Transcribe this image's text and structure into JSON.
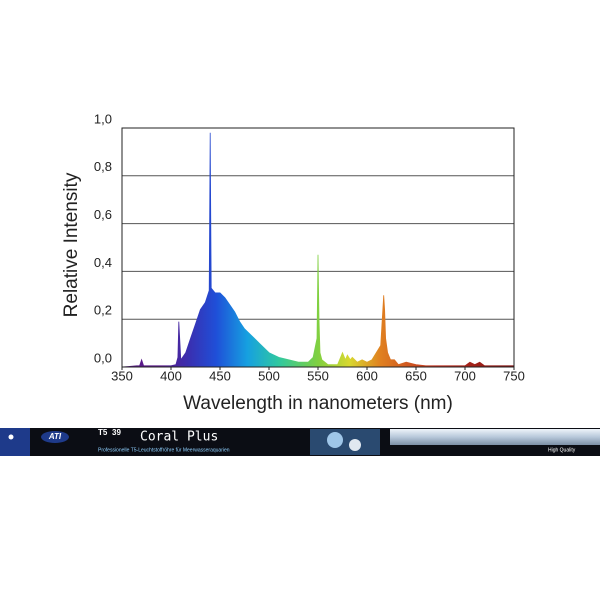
{
  "chart_data": {
    "type": "area",
    "x_label": "Wavelength in nanometers (nm)",
    "y_label": "Relative Intensity",
    "x": [
      350,
      365,
      368,
      370,
      372,
      400,
      405,
      407,
      408,
      410,
      415,
      420,
      425,
      430,
      435,
      439,
      440,
      441,
      445,
      450,
      455,
      460,
      465,
      470,
      475,
      480,
      485,
      490,
      495,
      500,
      510,
      520,
      530,
      540,
      545,
      549,
      550,
      551,
      552,
      554,
      557,
      560,
      570,
      575,
      578,
      580,
      583,
      585,
      590,
      595,
      600,
      605,
      614,
      617,
      618,
      619,
      621,
      624,
      628,
      632,
      640,
      650,
      660,
      680,
      700,
      705,
      710,
      715,
      720,
      730,
      750
    ],
    "values": [
      0,
      0.005,
      0.005,
      0.03,
      0.005,
      0.005,
      0.01,
      0.04,
      0.19,
      0.03,
      0.06,
      0.12,
      0.18,
      0.24,
      0.27,
      0.32,
      0.98,
      0.33,
      0.31,
      0.31,
      0.29,
      0.26,
      0.23,
      0.19,
      0.16,
      0.14,
      0.12,
      0.1,
      0.08,
      0.06,
      0.04,
      0.03,
      0.02,
      0.02,
      0.04,
      0.12,
      0.47,
      0.2,
      0.06,
      0.03,
      0.02,
      0.01,
      0.01,
      0.06,
      0.03,
      0.05,
      0.03,
      0.04,
      0.02,
      0.03,
      0.02,
      0.03,
      0.09,
      0.3,
      0.24,
      0.12,
      0.06,
      0.03,
      0.03,
      0.01,
      0.02,
      0.01,
      0.005,
      0.005,
      0.005,
      0.02,
      0.01,
      0.02,
      0.005,
      0.005,
      0.005
    ],
    "xlim": [
      350,
      750
    ],
    "xticks": [
      350,
      400,
      450,
      500,
      550,
      600,
      650,
      700,
      750
    ],
    "ylim": [
      0,
      1
    ],
    "yticks": [
      {
        "value": 0,
        "label": "0,0"
      },
      {
        "value": 0.2,
        "label": "0,2"
      },
      {
        "value": 0.4,
        "label": "0,4"
      },
      {
        "value": 0.6,
        "label": "0,6"
      },
      {
        "value": 0.8,
        "label": "0,8"
      },
      {
        "value": 1,
        "label": "1,0"
      }
    ],
    "grid": true
  },
  "product": {
    "brand": "ATI",
    "lamp": "T5",
    "watt": "39",
    "name": "Coral Plus",
    "description": "Professionelle T5-Leuchtstoffröhre für Meerwasseraquarien",
    "badge": "High Quality"
  }
}
